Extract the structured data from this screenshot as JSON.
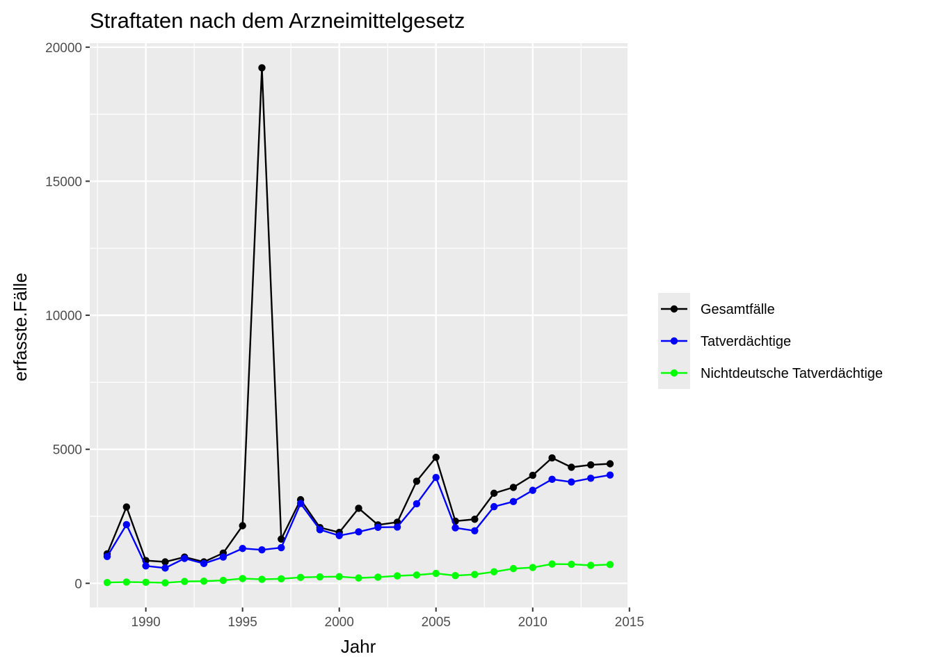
{
  "chart_data": {
    "type": "line",
    "title": "Straftaten nach dem Arzneimittelgesetz",
    "xlabel": "Jahr",
    "ylabel": "erfasste.Fälle",
    "xlim": [
      1987.1,
      2014.9
    ],
    "ylim": [
      -900,
      20150
    ],
    "x_ticks": [
      1990,
      1995,
      2000,
      2005,
      2010,
      2015
    ],
    "y_ticks": [
      0,
      5000,
      10000,
      15000,
      20000
    ],
    "x_tick_labels": [
      "1990",
      "1995",
      "2000",
      "2005",
      "2010",
      "2015"
    ],
    "y_tick_labels": [
      "0",
      "5000",
      "10000",
      "15000",
      "20000"
    ],
    "grid": true,
    "legend_position": "right",
    "x": [
      1988,
      1989,
      1990,
      1991,
      1992,
      1993,
      1994,
      1995,
      1996,
      1997,
      1998,
      1999,
      2000,
      2001,
      2002,
      2003,
      2004,
      2005,
      2006,
      2007,
      2008,
      2009,
      2010,
      2011,
      2012,
      2013,
      2014
    ],
    "series": [
      {
        "name": "Gesamtfälle",
        "color": "#000000",
        "values": [
          1100,
          2850,
          850,
          800,
          980,
          800,
          1130,
          2150,
          19230,
          1650,
          3120,
          2080,
          1900,
          2800,
          2180,
          2280,
          3810,
          4700,
          2320,
          2390,
          3360,
          3580,
          4030,
          4680,
          4330,
          4420,
          4460
        ]
      },
      {
        "name": "Tatverdächtige",
        "color": "#0000FF",
        "values": [
          1000,
          2190,
          650,
          570,
          930,
          740,
          980,
          1300,
          1250,
          1330,
          2980,
          2000,
          1780,
          1920,
          2090,
          2100,
          2970,
          3950,
          2070,
          1960,
          2860,
          3050,
          3470,
          3880,
          3780,
          3920,
          4040
        ]
      },
      {
        "name": "Nichtdeutsche Tatverdächtige",
        "color": "#00FF00",
        "values": [
          30,
          50,
          40,
          20,
          70,
          80,
          110,
          180,
          150,
          170,
          220,
          240,
          250,
          200,
          230,
          280,
          310,
          370,
          290,
          330,
          430,
          550,
          590,
          720,
          710,
          670,
          700
        ]
      }
    ]
  },
  "style": {
    "panel_background": "#EBEBEB",
    "grid_color": "#FFFFFF",
    "tick_color": "#333333",
    "legend_key_background": "#EBEBEB"
  }
}
